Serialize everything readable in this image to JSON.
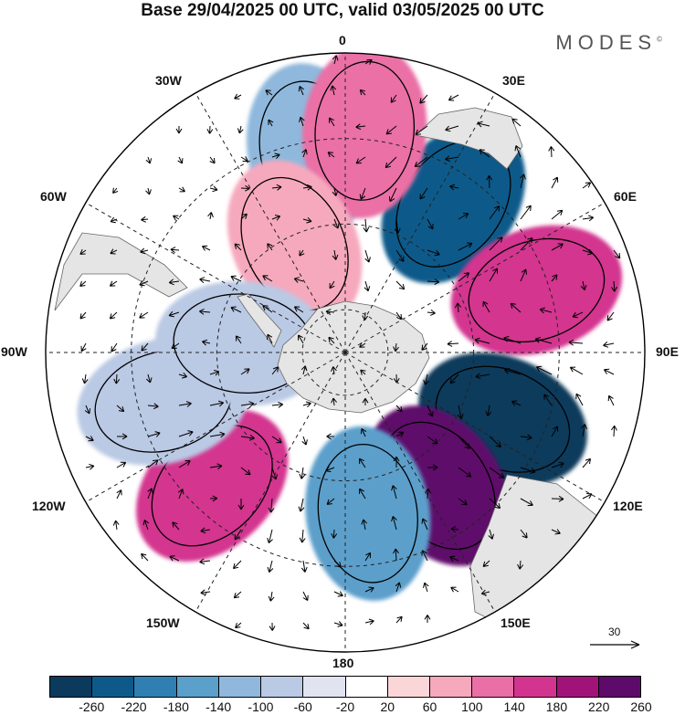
{
  "title": "Base 29/04/2025 00 UTC, valid 03/05/2025 00 UTC",
  "brand": "MODES",
  "brand_mark": "©",
  "longitude_labels": {
    "n0": "0",
    "e30": "30E",
    "e60": "60E",
    "e90": "90E",
    "e120": "120E",
    "e150": "150E",
    "s180": "180",
    "w150": "150W",
    "w120": "120W",
    "w90": "90W",
    "w60": "60W",
    "w30": "30W"
  },
  "vector_scale_label": "30",
  "colorbar": {
    "colors": [
      "#0b3a5c",
      "#0d5a8a",
      "#2f7fb3",
      "#5b9fcb",
      "#8fb8dc",
      "#bac9e4",
      "#e2e3f1",
      "#ffffff",
      "#fbd6d9",
      "#f6a9bd",
      "#ea6fa6",
      "#d3348f",
      "#a2137a",
      "#5e0a6b"
    ],
    "ticks": [
      "-260",
      "-220",
      "-180",
      "-140",
      "-100",
      "-60",
      "-20",
      "20",
      "60",
      "100",
      "140",
      "180",
      "220",
      "260"
    ]
  },
  "anomaly_blobs": [
    {
      "lat": -47,
      "lon": 36,
      "value": -240
    },
    {
      "lat": -43,
      "lon": 72,
      "value": 165
    },
    {
      "lat": -50,
      "lon": 113,
      "value": -265
    },
    {
      "lat": -52,
      "lon": 145,
      "value": 225
    },
    {
      "lat": -52,
      "lon": 172,
      "value": -175
    },
    {
      "lat": -46,
      "lon": -135,
      "value": 150
    },
    {
      "lat": -46,
      "lon": -105,
      "value": -95
    },
    {
      "lat": -42,
      "lon": -10,
      "value": -115
    },
    {
      "lat": -38,
      "lon": 5,
      "value": 135
    },
    {
      "lat": -62,
      "lon": -25,
      "value": 80
    },
    {
      "lat": -66,
      "lon": -85,
      "value": -90
    }
  ]
}
